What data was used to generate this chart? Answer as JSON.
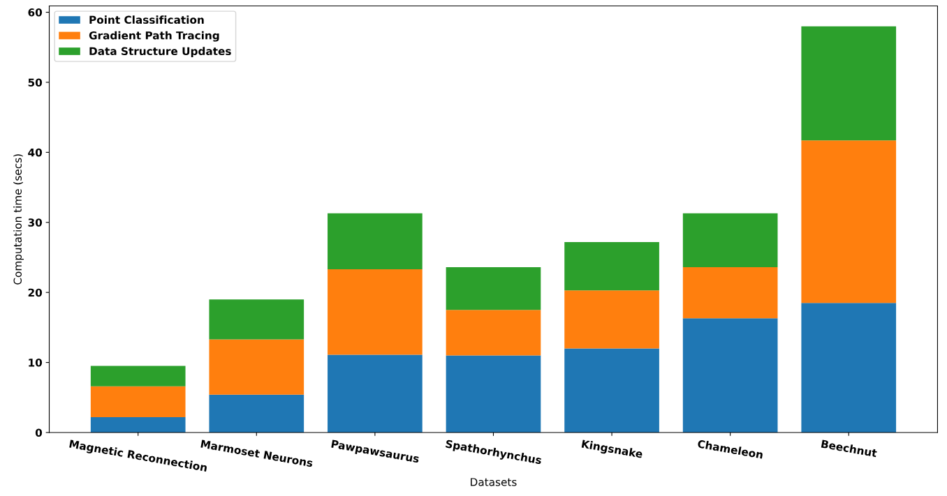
{
  "chart_data": {
    "type": "bar",
    "stacked": true,
    "xlabel": "Datasets",
    "ylabel": "Computation time (secs)",
    "categories": [
      "Magnetic Reconnection",
      "Marmoset Neurons",
      "Pawpawsaurus",
      "Spathorhynchus",
      "Kingsnake",
      "Chameleon",
      "Beechnut"
    ],
    "series": [
      {
        "name": "Point Classification",
        "color": "#1f77b4",
        "values": [
          2.2,
          5.4,
          11.1,
          11.0,
          12.0,
          16.3,
          18.5
        ]
      },
      {
        "name": "Gradient Path Tracing",
        "color": "#ff7f0e",
        "values": [
          4.4,
          7.9,
          12.2,
          6.5,
          8.3,
          7.3,
          23.2
        ]
      },
      {
        "name": "Data Structure Updates",
        "color": "#2ca02c",
        "values": [
          2.9,
          5.7,
          8.0,
          6.1,
          6.9,
          7.7,
          16.3
        ]
      }
    ],
    "ylim": [
      0,
      60.9
    ],
    "yticks": [
      0,
      10,
      20,
      30,
      40,
      50,
      60
    ],
    "legend": "top left",
    "grid": false
  }
}
